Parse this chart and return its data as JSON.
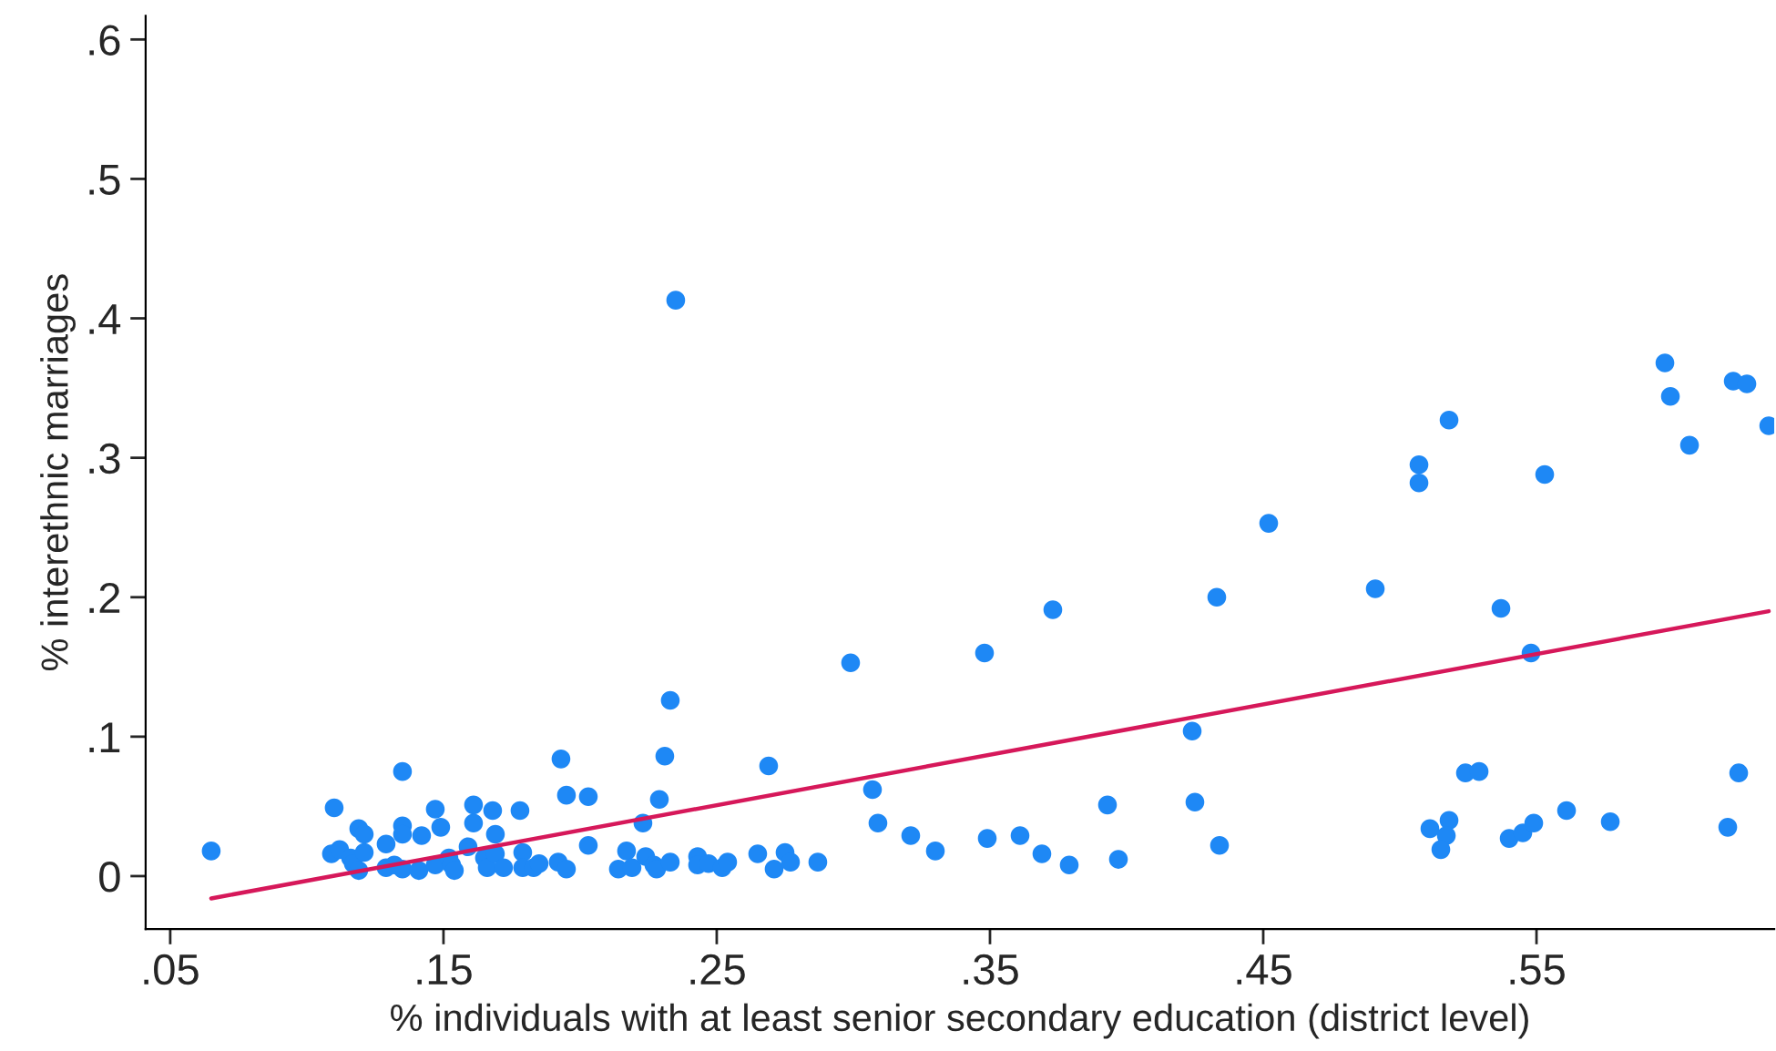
{
  "chart_data": {
    "type": "scatter",
    "xlabel": "% individuals with at least senior secondary education (district level)",
    "ylabel": "% interethnic marriages",
    "xlim": [
      0.041,
      0.637
    ],
    "ylim": [
      -0.038,
      0.617
    ],
    "xticks": [
      {
        "value": 0.05,
        "label": ".05"
      },
      {
        "value": 0.15,
        "label": ".15"
      },
      {
        "value": 0.25,
        "label": ".25"
      },
      {
        "value": 0.35,
        "label": ".35"
      },
      {
        "value": 0.45,
        "label": ".45"
      },
      {
        "value": 0.55,
        "label": ".55"
      }
    ],
    "yticks": [
      0,
      {
        "value": 0.1,
        "label": ".1"
      },
      {
        "value": 0.2,
        "label": ".2"
      },
      {
        "value": 0.3,
        "label": ".3"
      },
      {
        "value": 0.4,
        "label": ".4"
      },
      {
        "value": 0.5,
        "label": ".5"
      },
      {
        "value": 0.6,
        "label": ".6"
      }
    ],
    "grid": false,
    "legend": false,
    "marker": "circle",
    "series": [
      {
        "color": "#1e88f5",
        "x": [
          0.065,
          0.11,
          0.109,
          0.112,
          0.116,
          0.117,
          0.119,
          0.119,
          0.121,
          0.121,
          0.129,
          0.129,
          0.132,
          0.135,
          0.135,
          0.135,
          0.135,
          0.142,
          0.141,
          0.147,
          0.149,
          0.147,
          0.152,
          0.153,
          0.154,
          0.159,
          0.161,
          0.161,
          0.165,
          0.166,
          0.168,
          0.169,
          0.169,
          0.172,
          0.179,
          0.178,
          0.179,
          0.183,
          0.185,
          0.193,
          0.195,
          0.192,
          0.195,
          0.203,
          0.203,
          0.235,
          0.233,
          0.231,
          0.229,
          0.223,
          0.217,
          0.214,
          0.219,
          0.224,
          0.227,
          0.228,
          0.233,
          0.243,
          0.243,
          0.247,
          0.252,
          0.254,
          0.265,
          0.269,
          0.271,
          0.275,
          0.277,
          0.287,
          0.299,
          0.307,
          0.309,
          0.321,
          0.33,
          0.348,
          0.349,
          0.361,
          0.369,
          0.373,
          0.379,
          0.393,
          0.397,
          0.597,
          0.599,
          0.622,
          0.627,
          0.635,
          0.606,
          0.518,
          0.507,
          0.507,
          0.553,
          0.452,
          0.433,
          0.491,
          0.537,
          0.548,
          0.424,
          0.425,
          0.434,
          0.524,
          0.529,
          0.624,
          0.511,
          0.518,
          0.517,
          0.515,
          0.54,
          0.545,
          0.549,
          0.561,
          0.577,
          0.62
        ],
        "values": [
          0.018,
          0.049,
          0.016,
          0.019,
          0.013,
          0.009,
          0.004,
          0.034,
          0.03,
          0.017,
          0.023,
          0.006,
          0.008,
          0.075,
          0.036,
          0.03,
          0.005,
          0.029,
          0.004,
          0.048,
          0.035,
          0.008,
          0.013,
          0.008,
          0.004,
          0.021,
          0.051,
          0.038,
          0.013,
          0.006,
          0.047,
          0.03,
          0.016,
          0.006,
          0.017,
          0.047,
          0.006,
          0.006,
          0.009,
          0.084,
          0.058,
          0.01,
          0.005,
          0.057,
          0.022,
          0.413,
          0.126,
          0.086,
          0.055,
          0.038,
          0.018,
          0.005,
          0.006,
          0.014,
          0.008,
          0.005,
          0.01,
          0.014,
          0.008,
          0.009,
          0.006,
          0.01,
          0.016,
          0.079,
          0.005,
          0.017,
          0.01,
          0.01,
          0.153,
          0.062,
          0.038,
          0.029,
          0.018,
          0.16,
          0.027,
          0.029,
          0.016,
          0.191,
          0.008,
          0.051,
          0.012,
          0.368,
          0.344,
          0.355,
          0.353,
          0.323,
          0.309,
          0.327,
          0.295,
          0.282,
          0.288,
          0.253,
          0.2,
          0.206,
          0.192,
          0.16,
          0.104,
          0.053,
          0.022,
          0.074,
          0.075,
          0.074,
          0.034,
          0.04,
          0.029,
          0.019,
          0.027,
          0.031,
          0.038,
          0.047,
          0.039,
          0.035
        ]
      },
      {
        "type": "line",
        "color": "#d6185a",
        "line_style": "solid",
        "marker": "none",
        "x": [
          0.065,
          0.635
        ],
        "values": [
          -0.016,
          0.19
        ]
      }
    ]
  }
}
